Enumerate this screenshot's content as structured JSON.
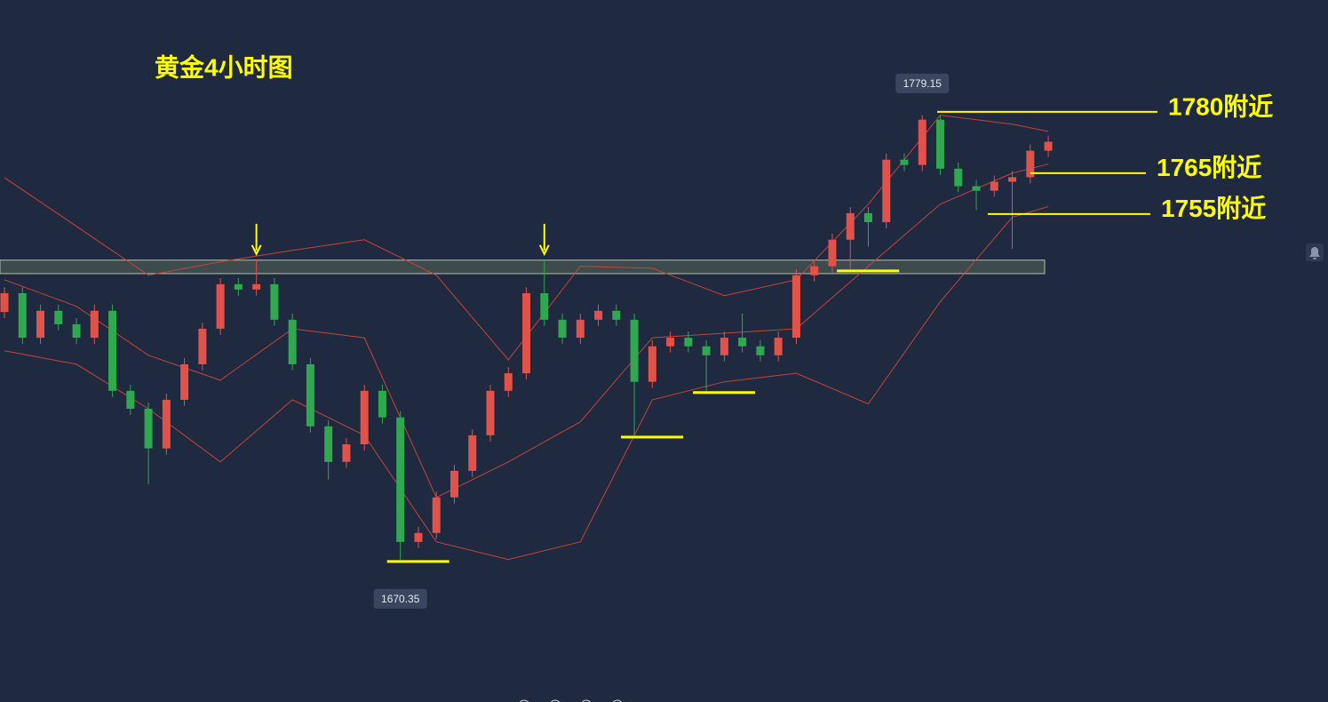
{
  "chart_data": {
    "type": "candlestick",
    "title": "黄金4小时图",
    "open": [
      1731.0,
      1735.6,
      1724.7,
      1731.3,
      1728.0,
      1724.7,
      1731.3,
      1711.7,
      1707.3,
      1697.6,
      1709.5,
      1718.2,
      1726.9,
      1737.8,
      1736.5,
      1737.8,
      1729.1,
      1718.2,
      1703.0,
      1694.3,
      1698.6,
      1711.7,
      1705.2,
      1674.7,
      1676.9,
      1685.6,
      1692.1,
      1700.8,
      1711.7,
      1716.0,
      1735.6,
      1729.1,
      1724.7,
      1729.1,
      1731.3,
      1729.1,
      1713.9,
      1722.6,
      1724.7,
      1722.6,
      1720.4,
      1724.7,
      1722.6,
      1720.4,
      1724.7,
      1740.0,
      1742.2,
      1748.7,
      1755.2,
      1753.0,
      1768.3,
      1767.0,
      1778.1,
      1766.1,
      1761.8,
      1760.7,
      1762.9,
      1764.0,
      1770.5
    ],
    "high": [
      1737.1,
      1737.1,
      1732.8,
      1732.8,
      1729.5,
      1732.8,
      1732.8,
      1713.2,
      1708.8,
      1711.0,
      1719.7,
      1728.4,
      1739.3,
      1739.3,
      1743.9,
      1739.3,
      1730.6,
      1719.7,
      1704.5,
      1700.1,
      1713.2,
      1713.2,
      1706.7,
      1678.4,
      1687.1,
      1693.6,
      1702.3,
      1713.2,
      1717.5,
      1737.1,
      1743.9,
      1730.6,
      1730.6,
      1732.8,
      1732.8,
      1730.6,
      1724.1,
      1726.2,
      1726.2,
      1724.1,
      1726.2,
      1730.6,
      1724.1,
      1726.2,
      1741.5,
      1743.7,
      1750.2,
      1756.7,
      1756.7,
      1769.8,
      1769.8,
      1779.15,
      1779.0,
      1767.6,
      1763.3,
      1764.4,
      1765.5,
      1772.0,
      1774.2
    ],
    "low": [
      1729.5,
      1723.2,
      1723.2,
      1726.5,
      1723.2,
      1723.2,
      1710.2,
      1705.8,
      1688.8,
      1696.1,
      1708.0,
      1716.7,
      1725.4,
      1735.0,
      1735.0,
      1727.6,
      1716.7,
      1701.5,
      1690.0,
      1692.8,
      1697.1,
      1703.7,
      1670.35,
      1673.2,
      1675.4,
      1684.1,
      1690.6,
      1699.3,
      1710.2,
      1714.5,
      1727.6,
      1723.2,
      1723.2,
      1727.6,
      1727.6,
      1700.8,
      1712.4,
      1721.1,
      1721.1,
      1711.7,
      1718.9,
      1721.1,
      1718.9,
      1718.9,
      1723.2,
      1738.5,
      1740.7,
      1741.5,
      1747.0,
      1751.5,
      1765.5,
      1765.5,
      1764.6,
      1760.3,
      1756.0,
      1759.2,
      1746.5,
      1762.5,
      1769.0
    ],
    "close": [
      1735.6,
      1724.7,
      1731.3,
      1728.0,
      1724.7,
      1731.3,
      1711.7,
      1707.3,
      1697.6,
      1709.5,
      1718.2,
      1726.9,
      1737.8,
      1736.5,
      1737.8,
      1729.1,
      1718.2,
      1703.0,
      1694.3,
      1698.6,
      1711.7,
      1705.2,
      1674.7,
      1676.9,
      1685.6,
      1692.1,
      1700.8,
      1711.7,
      1716.0,
      1735.6,
      1729.1,
      1724.7,
      1729.1,
      1731.3,
      1729.1,
      1713.9,
      1722.6,
      1724.7,
      1722.6,
      1720.4,
      1724.7,
      1722.6,
      1720.4,
      1724.7,
      1740.0,
      1742.2,
      1748.7,
      1755.2,
      1753.0,
      1768.3,
      1767.0,
      1778.1,
      1766.1,
      1761.8,
      1760.7,
      1762.9,
      1764.0,
      1770.5,
      1772.7
    ],
    "up_color": "#e0524a",
    "down_color": "#2fa84f",
    "ylim": [
      1635.5,
      1807.4
    ],
    "bands": {
      "x": [
        0,
        4,
        8,
        12,
        16,
        20,
        24,
        28,
        32,
        36,
        40,
        44,
        48,
        52,
        56,
        58
      ],
      "upper": [
        1763.9,
        1752.0,
        1740.0,
        1743.3,
        1746.1,
        1748.7,
        1740.0,
        1719.3,
        1742.2,
        1741.7,
        1735.0,
        1738.9,
        1757.4,
        1779.2,
        1777.0,
        1775.2
      ],
      "middle": [
        1738.9,
        1732.4,
        1720.4,
        1714.3,
        1726.9,
        1724.7,
        1685.6,
        1694.3,
        1704.1,
        1724.7,
        1725.8,
        1726.9,
        1742.2,
        1757.4,
        1765.0,
        1767.2
      ],
      "lower": [
        1721.5,
        1718.2,
        1707.3,
        1694.3,
        1709.5,
        1700.8,
        1674.7,
        1670.4,
        1674.7,
        1709.5,
        1713.9,
        1716.0,
        1708.5,
        1733.5,
        1754.2,
        1756.8
      ],
      "color": "#c2453b"
    },
    "zone": [
      1740.4,
      1743.7
    ],
    "levels": [
      {
        "label": "1780附近",
        "value": 1780
      },
      {
        "label": "1765附近",
        "value": 1765
      },
      {
        "label": "1755附近",
        "value": 1755
      }
    ],
    "annotation_color": "#ffff00"
  }
}
